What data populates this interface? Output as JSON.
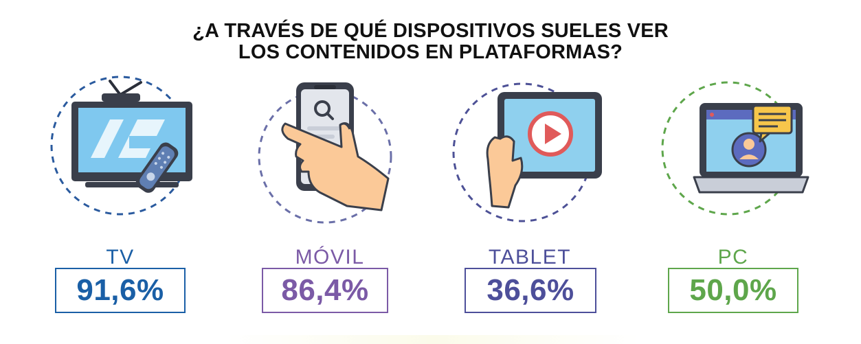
{
  "title": {
    "line1": "¿A TRAVÉS DE QUÉ DISPOSITIVOS SUELES VER",
    "line2": "LOS CONTENIDOS EN PLATAFORMAS?"
  },
  "colors": {
    "tv": "#1a5fa6",
    "movil": "#7b5aa6",
    "tablet": "#4d4f9a",
    "pc": "#5ea64b"
  },
  "icons": {
    "tv": "tv-with-remote-icon",
    "movil": "hand-holding-phone-icon",
    "tablet": "hand-holding-tablet-play-icon",
    "pc": "laptop-user-chat-icon"
  },
  "chart_data": {
    "type": "bar",
    "categories": [
      "TV",
      "MÓVIL",
      "TABLET",
      "PC"
    ],
    "values": [
      91.6,
      86.4,
      36.6,
      50.0
    ],
    "value_labels": [
      "91,6%",
      "86,4%",
      "36,6%",
      "50,0%"
    ],
    "title": "¿A TRAVÉS DE QUÉ DISPOSITIVOS SUELES VER LOS CONTENIDOS EN PLATAFORMAS?",
    "unit": "%"
  }
}
